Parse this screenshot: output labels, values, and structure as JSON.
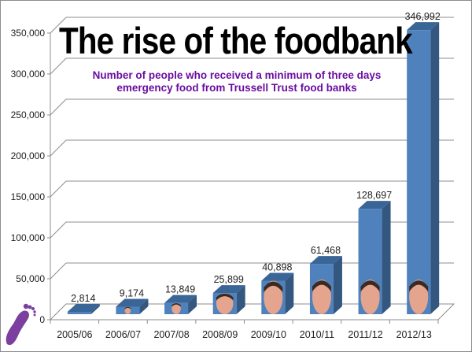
{
  "chart_data": {
    "type": "bar",
    "style": "3d-column",
    "title": "The rise of the foodbank",
    "subtitle": "Number of people who received a minimum of three days emergency food from Trussell Trust food banks",
    "categories": [
      "2005/06",
      "2006/07",
      "2007/08",
      "2008/09",
      "2009/10",
      "2010/11",
      "2011/12",
      "2012/13"
    ],
    "values": [
      2814,
      9174,
      13849,
      25899,
      40898,
      61468,
      128697,
      346992
    ],
    "data_labels": [
      "2,814",
      "9,174",
      "13,849",
      "25,899",
      "40,898",
      "61,468",
      "128,697",
      "346,992"
    ],
    "bar_images": [
      "face-photo",
      "face-photo",
      "face-photo",
      "face-photo",
      "face-photo",
      "face-photo",
      "face-photo",
      "face-photo"
    ],
    "xlabel": "",
    "ylabel": "",
    "ylim": [
      0,
      350000
    ],
    "yticks": [
      0,
      50000,
      100000,
      150000,
      200000,
      250000,
      300000,
      350000
    ],
    "ytick_labels": [
      "0",
      "50,000",
      "100,000",
      "150,000",
      "200,000",
      "250,000",
      "300,000",
      "350,000"
    ],
    "grid": true,
    "legend": "none",
    "colors": {
      "bar_front": "#4f81bd",
      "bar_side": "#34577f",
      "bar_top": "#3a6597",
      "grid": "#8c8c8c",
      "subtitle": "#6a0da0",
      "logo": "#7b3fa0"
    }
  },
  "logo": {
    "icon": "footprint-icon"
  }
}
